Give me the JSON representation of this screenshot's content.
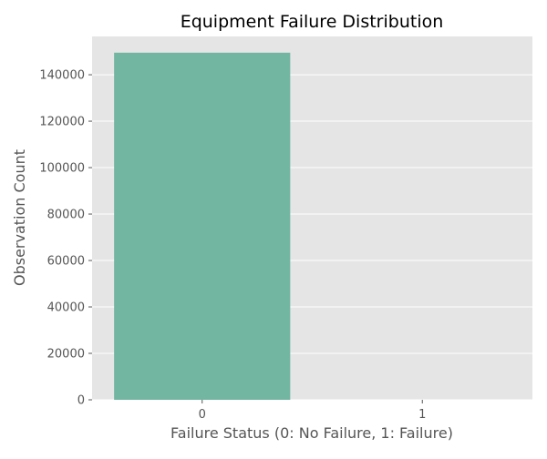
{
  "chart_data": {
    "type": "bar",
    "title": "Equipment Failure Distribution",
    "xlabel": "Failure Status (0: No Failure, 1: Failure)",
    "ylabel": "Observation Count",
    "categories": [
      "0",
      "1"
    ],
    "values": [
      149500,
      0
    ],
    "ylim": [
      0,
      156500
    ],
    "yticks": [
      0,
      20000,
      40000,
      60000,
      80000,
      100000,
      120000,
      140000
    ],
    "grid": true,
    "legend": "none",
    "colors": {
      "bar": "#72b6a1",
      "background": "#e5e5e5",
      "grid": "#ffffff",
      "text": "#555555",
      "title": "#000000"
    }
  }
}
